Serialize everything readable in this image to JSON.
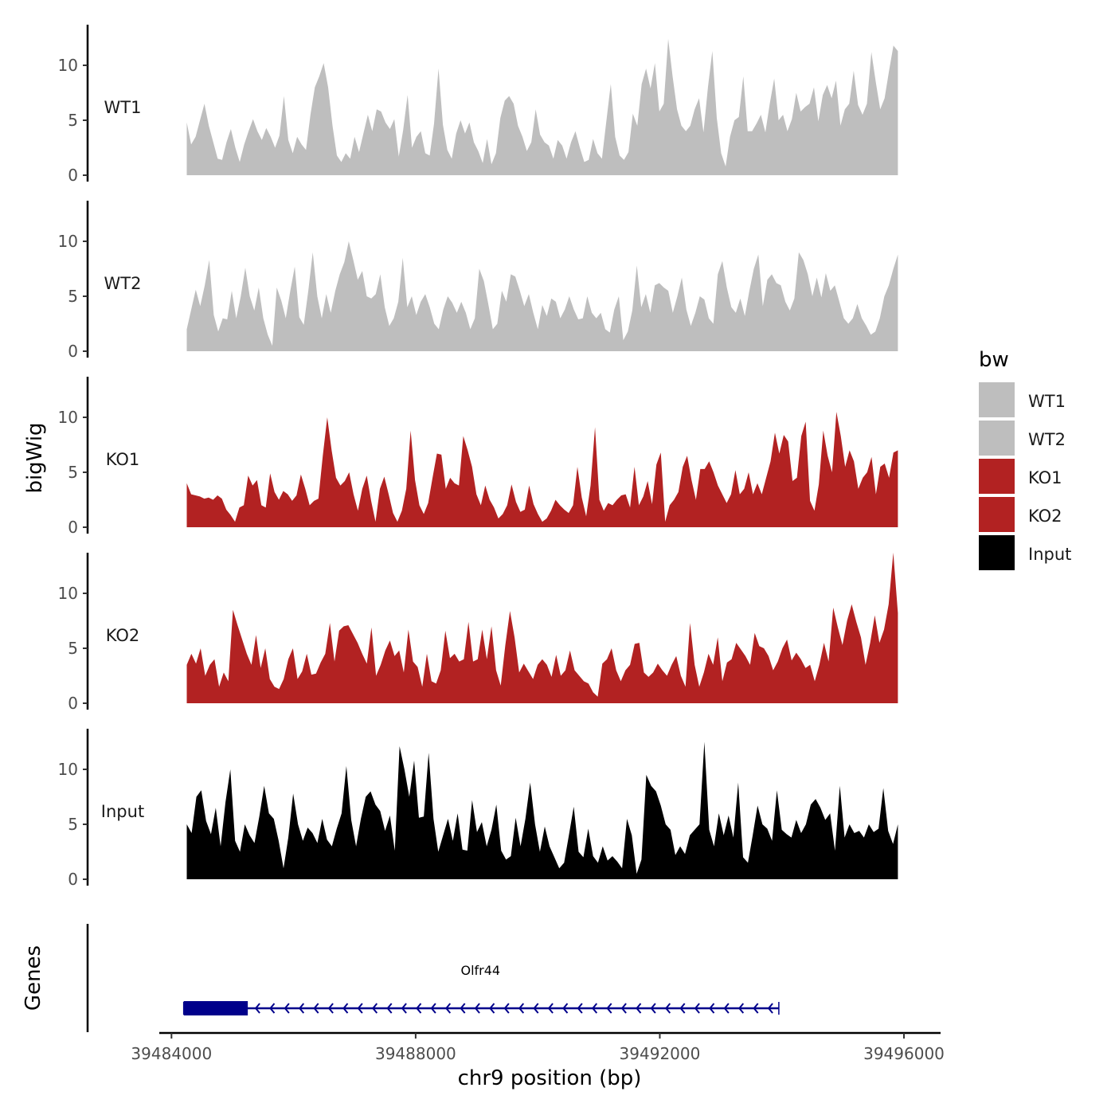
{
  "chart_data": {
    "type": "area",
    "xlabel": "chr9 position (bp)",
    "ylabel": "bigWig",
    "xlim": [
      39483800,
      39496600
    ],
    "x_ticks": [
      39484000,
      39488000,
      39492000,
      39496000
    ],
    "x_tick_labels": [
      "39484000",
      "39488000",
      "39492000",
      "39496000"
    ],
    "ylim": [
      0,
      14
    ],
    "y_ticks": [
      0,
      5,
      10
    ],
    "y_tick_labels": [
      "0",
      "5",
      "10"
    ],
    "x_start": 39484250,
    "x_end": 39495900,
    "legend": {
      "title": "bw",
      "position": "right",
      "entries": [
        {
          "name": "WT1",
          "color": "#bebebe"
        },
        {
          "name": "WT2",
          "color": "#bebebe"
        },
        {
          "name": "KO1",
          "color": "#b22222"
        },
        {
          "name": "KO2",
          "color": "#b22222"
        },
        {
          "name": "Input",
          "color": "#000000"
        }
      ]
    },
    "series": [
      {
        "name": "WT1",
        "color": "#bebebe",
        "values": [
          4.8,
          2.8,
          3.5,
          5.0,
          6.5,
          4.5,
          3.0,
          1.5,
          1.4,
          3.0,
          4.2,
          2.5,
          1.2,
          2.8,
          4.0,
          5.1,
          4.0,
          3.2,
          4.3,
          3.5,
          2.5,
          3.6,
          7.2,
          3.2,
          2.0,
          3.5,
          2.8,
          2.3,
          5.5,
          8.0,
          9.0,
          10.2,
          8.0,
          4.5,
          1.8,
          1.2,
          2.0,
          1.5,
          3.5,
          2.1,
          3.8,
          5.5,
          4.0,
          6.0,
          5.8,
          4.8,
          4.2,
          5.1,
          1.7,
          4.1,
          7.3,
          2.5,
          3.5,
          4.0,
          2.0,
          1.8,
          4.7,
          9.7,
          4.6,
          2.3,
          1.5,
          3.8,
          5.0,
          3.8,
          4.8,
          3.0,
          2.2,
          1.1,
          3.3,
          1.0,
          2.0,
          5.2,
          6.8,
          7.2,
          6.5,
          4.5,
          3.5,
          2.2,
          3.0,
          6.0,
          3.7,
          3.0,
          2.7,
          1.5,
          3.2,
          2.7,
          1.5,
          3.0,
          4.0,
          2.5,
          1.2,
          1.4,
          3.3,
          2.0,
          1.5,
          4.9,
          8.3,
          3.5,
          1.8,
          1.4,
          2.1,
          5.6,
          4.5,
          8.3,
          9.7,
          7.9,
          10.2,
          5.8,
          6.5,
          12.4,
          9.0,
          6.0,
          4.5,
          4.0,
          4.5,
          6.0,
          7.0,
          3.9,
          8.0,
          11.3,
          5.2,
          2.0,
          0.8,
          3.5,
          5.0,
          5.3,
          9.0,
          4.0,
          4.0,
          4.7,
          5.5,
          3.9,
          6.5,
          8.8,
          5.0,
          5.5,
          4.0,
          5.1,
          7.5,
          5.8,
          6.2,
          6.5,
          8.0,
          4.9,
          7.3,
          8.2,
          7.0,
          8.6,
          4.5,
          6.0,
          6.5,
          9.5,
          6.4,
          5.5,
          6.5,
          11.2,
          8.5,
          6.0,
          7.0,
          9.5,
          11.8,
          11.3
        ]
      },
      {
        "name": "WT2",
        "color": "#bebebe",
        "values": [
          2.0,
          3.8,
          5.6,
          4.1,
          6.0,
          8.3,
          3.3,
          1.8,
          3.0,
          2.9,
          5.5,
          3.0,
          5.0,
          7.6,
          5.0,
          3.7,
          5.8,
          3.0,
          1.5,
          0.5,
          5.8,
          4.6,
          3.0,
          5.5,
          7.7,
          3.1,
          2.4,
          5.5,
          9.0,
          5.0,
          3.0,
          5.2,
          3.5,
          5.5,
          7.0,
          8.1,
          10.0,
          8.3,
          6.5,
          7.3,
          5.0,
          4.8,
          5.2,
          7.0,
          4.0,
          2.3,
          3.0,
          4.5,
          8.5,
          4.0,
          5.0,
          3.3,
          4.5,
          5.2,
          4.0,
          2.5,
          2.0,
          3.8,
          5.0,
          4.4,
          3.5,
          4.5,
          3.5,
          2.0,
          3.0,
          7.5,
          6.4,
          4.3,
          2.0,
          2.5,
          5.5,
          4.5,
          7.0,
          6.8,
          5.5,
          4.1,
          5.2,
          3.5,
          2.0,
          4.2,
          3.2,
          4.8,
          4.5,
          3.0,
          3.8,
          5.0,
          3.8,
          2.9,
          3.0,
          5.0,
          3.5,
          3.0,
          3.5,
          2.0,
          1.7,
          3.8,
          5.0,
          1.0,
          1.8,
          3.7,
          7.8,
          4.0,
          5.2,
          3.5,
          6.0,
          6.2,
          5.8,
          5.5,
          3.5,
          5.0,
          6.7,
          3.8,
          2.3,
          3.5,
          5.0,
          4.7,
          3.0,
          2.5,
          7.0,
          8.2,
          5.8,
          4.0,
          3.5,
          4.8,
          3.2,
          5.5,
          7.5,
          8.8,
          4.1,
          6.5,
          7.0,
          6.2,
          6.0,
          4.5,
          3.7,
          4.8,
          9.0,
          8.3,
          7.0,
          5.0,
          6.7,
          4.9,
          7.1,
          5.5,
          6.0,
          4.5,
          3.0,
          2.5,
          3.0,
          4.3,
          3.0,
          2.3,
          1.5,
          1.8,
          3.0,
          5.0,
          6.0,
          7.5,
          8.8
        ]
      },
      {
        "name": "KO1",
        "color": "#b22222",
        "values": [
          4.0,
          3.0,
          2.9,
          2.8,
          2.6,
          2.7,
          2.5,
          2.9,
          2.6,
          1.6,
          1.1,
          0.5,
          1.8,
          2.0,
          4.7,
          3.8,
          4.3,
          2.0,
          1.8,
          4.9,
          3.2,
          2.5,
          3.3,
          3.0,
          2.4,
          2.9,
          4.8,
          3.5,
          2.0,
          2.4,
          2.6,
          6.5,
          10.0,
          7.0,
          4.5,
          3.8,
          4.2,
          5.0,
          3.0,
          1.5,
          3.5,
          4.7,
          2.4,
          0.5,
          3.5,
          4.6,
          3.0,
          1.3,
          0.5,
          1.5,
          3.5,
          8.8,
          4.3,
          2.0,
          1.2,
          2.2,
          4.5,
          6.7,
          6.6,
          3.5,
          4.5,
          4.0,
          3.8,
          8.3,
          7.0,
          5.5,
          3.0,
          2.0,
          3.8,
          2.5,
          1.8,
          0.8,
          1.2,
          2.0,
          3.9,
          2.3,
          1.4,
          1.6,
          3.8,
          2.1,
          1.2,
          0.5,
          0.8,
          1.5,
          2.5,
          2.0,
          1.6,
          1.3,
          2.0,
          5.5,
          2.7,
          1.0,
          3.8,
          9.1,
          2.5,
          1.5,
          2.2,
          2.0,
          2.5,
          2.9,
          3.0,
          1.8,
          5.5,
          2.0,
          2.8,
          4.2,
          2.1,
          5.7,
          6.8,
          0.5,
          2.0,
          2.5,
          3.2,
          5.5,
          6.5,
          4.3,
          2.5,
          5.3,
          5.3,
          6.0,
          5.0,
          3.8,
          3.0,
          2.2,
          3.0,
          5.2,
          3.0,
          3.5,
          5.0,
          3.0,
          4.0,
          3.0,
          4.5,
          6.0,
          8.6,
          6.7,
          8.4,
          7.8,
          4.2,
          4.5,
          8.3,
          9.6,
          2.4,
          1.5,
          3.9,
          8.8,
          6.5,
          5.0,
          10.5,
          8.3,
          5.5,
          7.0,
          6.0,
          3.5,
          4.5,
          5.0,
          6.4,
          3.0,
          5.5,
          5.8,
          4.5,
          6.8,
          7.0
        ]
      },
      {
        "name": "KO2",
        "color": "#b22222",
        "values": [
          3.5,
          4.5,
          3.6,
          5.0,
          2.5,
          3.5,
          4.0,
          1.5,
          2.8,
          2.0,
          8.5,
          7.1,
          5.8,
          4.5,
          3.5,
          6.2,
          3.2,
          5.0,
          2.2,
          1.5,
          1.3,
          2.2,
          4.0,
          5.0,
          2.2,
          2.9,
          4.5,
          2.6,
          2.7,
          3.7,
          4.5,
          7.3,
          3.8,
          6.6,
          7.0,
          7.1,
          6.3,
          5.5,
          4.5,
          3.6,
          6.9,
          2.5,
          3.5,
          4.8,
          5.7,
          4.3,
          4.8,
          2.8,
          6.7,
          3.8,
          3.3,
          1.5,
          4.5,
          2.0,
          1.8,
          3.0,
          6.6,
          4.1,
          4.5,
          3.8,
          4.0,
          7.4,
          3.8,
          4.0,
          6.7,
          4.0,
          7.0,
          3.0,
          1.6,
          5.3,
          8.4,
          6.0,
          2.8,
          3.6,
          2.9,
          2.2,
          3.5,
          4.0,
          3.5,
          2.4,
          4.4,
          2.5,
          3.0,
          4.8,
          3.0,
          2.5,
          2.0,
          1.8,
          1.0,
          0.6,
          3.6,
          4.0,
          5.0,
          3.0,
          2.0,
          3.0,
          3.5,
          5.4,
          5.5,
          2.8,
          2.4,
          2.8,
          3.6,
          3.0,
          2.5,
          3.5,
          4.3,
          2.5,
          1.5,
          7.3,
          3.5,
          1.5,
          2.8,
          4.5,
          3.5,
          6.0,
          2.0,
          3.7,
          4.0,
          5.5,
          4.9,
          4.3,
          3.5,
          6.4,
          5.2,
          5.0,
          4.3,
          3.0,
          3.8,
          5.0,
          5.8,
          3.9,
          4.6,
          4.0,
          3.2,
          3.5,
          2.0,
          3.5,
          5.5,
          3.8,
          8.7,
          6.9,
          5.3,
          7.5,
          9.0,
          7.4,
          6.0,
          3.5,
          5.5,
          8.0,
          5.5,
          6.7,
          9.0,
          13.7,
          8.2
        ]
      },
      {
        "name": "Input",
        "color": "#000000",
        "values": [
          5.0,
          4.2,
          7.5,
          8.1,
          5.3,
          4.1,
          6.5,
          3.0,
          7.0,
          10.0,
          3.5,
          2.5,
          5.0,
          4.0,
          3.3,
          5.7,
          8.5,
          6.0,
          5.5,
          3.5,
          1.0,
          3.8,
          7.8,
          5.0,
          3.5,
          4.7,
          4.2,
          3.3,
          5.5,
          3.6,
          3.0,
          4.6,
          6.0,
          10.3,
          5.4,
          3.0,
          5.5,
          7.5,
          8.0,
          6.8,
          6.2,
          4.4,
          5.8,
          2.6,
          12.1,
          10.0,
          7.5,
          10.8,
          5.6,
          5.7,
          11.5,
          5.5,
          2.5,
          4.0,
          5.5,
          3.5,
          6.0,
          2.7,
          2.6,
          7.2,
          4.3,
          5.2,
          3.0,
          4.5,
          6.8,
          2.6,
          1.8,
          2.1,
          5.6,
          3.0,
          5.5,
          8.8,
          5.0,
          2.5,
          4.8,
          3.0,
          2.0,
          1.0,
          1.5,
          4.0,
          6.6,
          2.5,
          2.0,
          4.6,
          2.1,
          1.5,
          3.0,
          1.7,
          2.1,
          1.6,
          1.0,
          5.5,
          4.0,
          0.5,
          1.8,
          9.5,
          8.5,
          8.0,
          6.7,
          5.0,
          4.5,
          2.2,
          3.0,
          2.3,
          4.0,
          4.5,
          5.0,
          12.5,
          4.5,
          3.0,
          6.0,
          4.0,
          5.8,
          3.8,
          8.8,
          2.0,
          1.5,
          4.0,
          6.7,
          5.0,
          4.6,
          3.5,
          8.1,
          4.5,
          4.1,
          3.8,
          5.4,
          4.2,
          5.0,
          6.8,
          7.3,
          6.5,
          5.4,
          6.0,
          2.6,
          8.5,
          3.8,
          5.0,
          4.2,
          4.4,
          3.8,
          5.0,
          4.3,
          4.6,
          8.3,
          4.4,
          3.2,
          5.0
        ]
      }
    ],
    "genes_track": {
      "label": "Genes",
      "genes": [
        {
          "name": "Olfr44",
          "start": 39484200,
          "end": 39493950,
          "strand": "-",
          "thick_start": 39484200,
          "thick_end": 39485250,
          "color": "#00008b"
        }
      ]
    }
  }
}
